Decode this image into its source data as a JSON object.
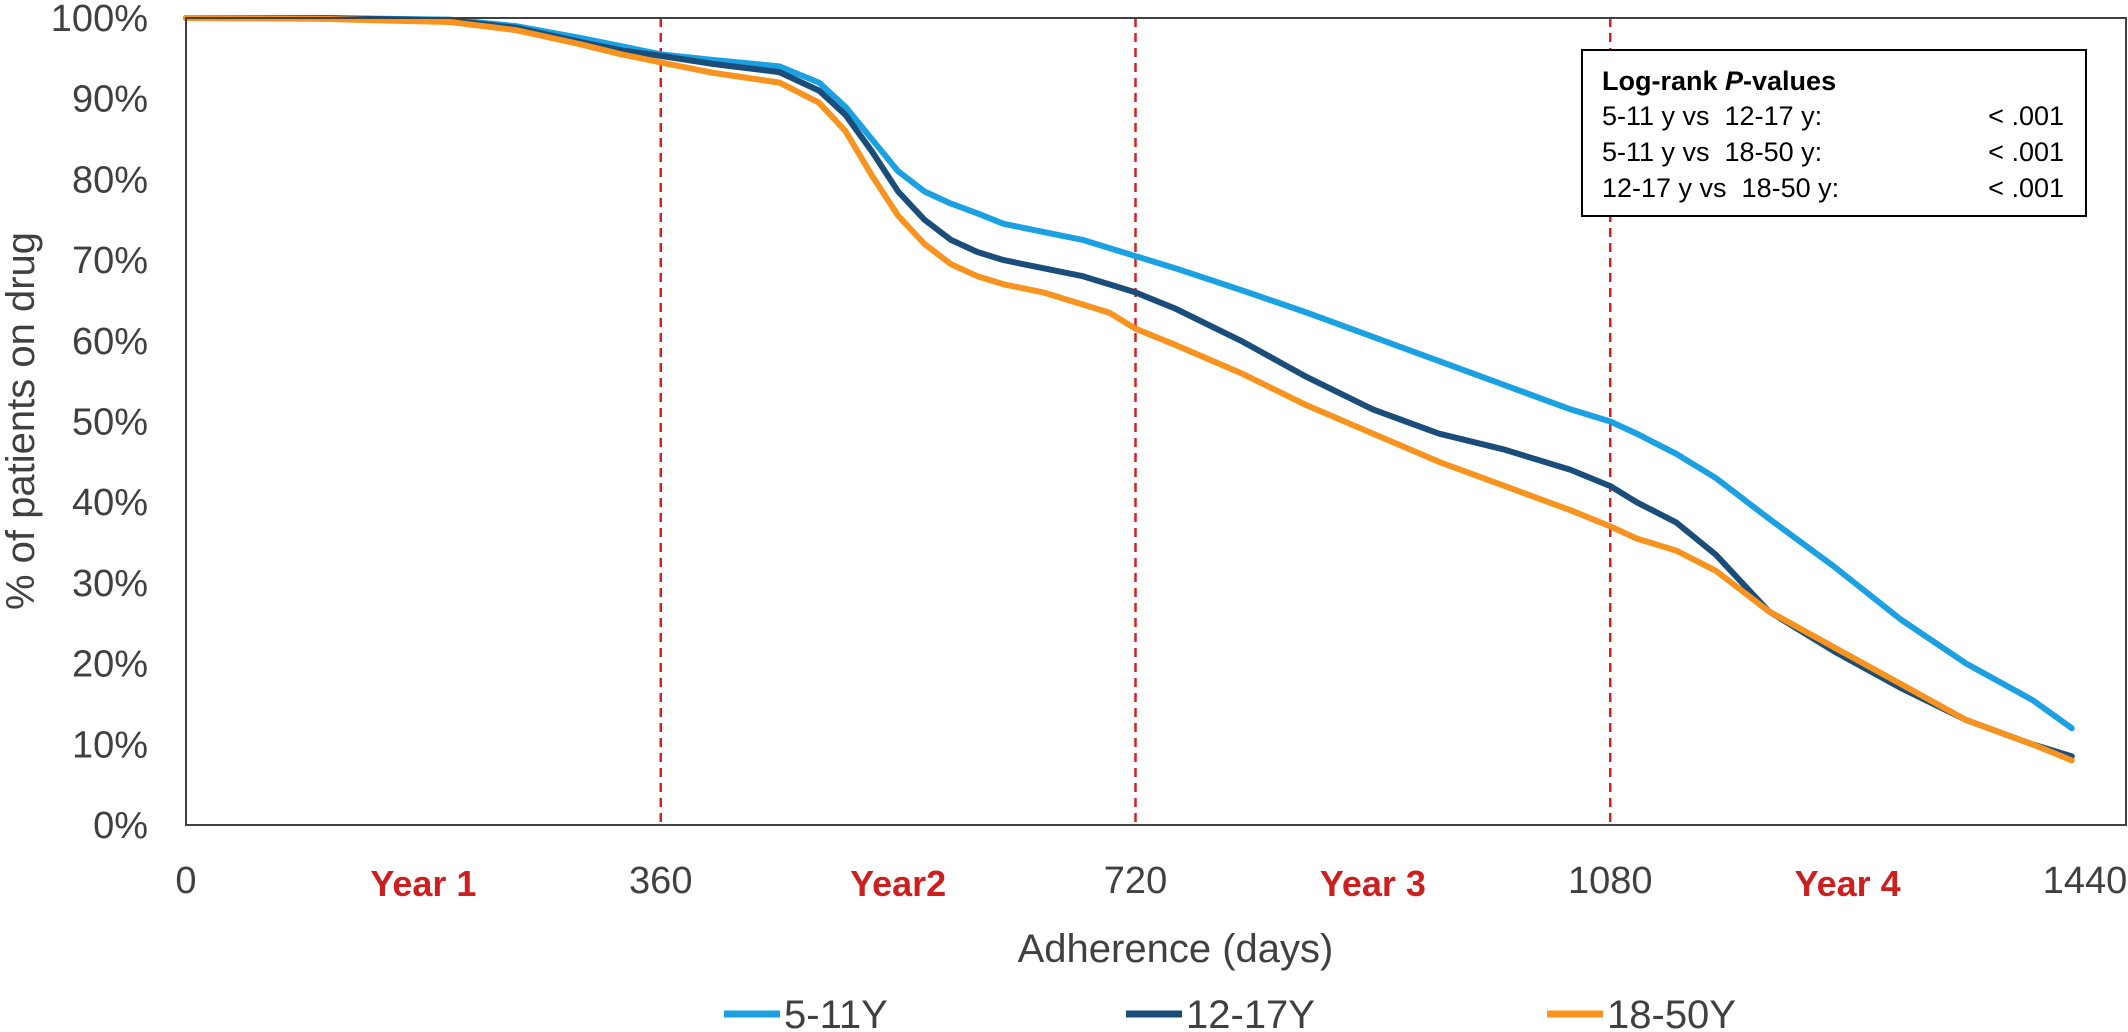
{
  "chart_data": {
    "type": "line",
    "xlabel": "Adherence (days)",
    "ylabel": "% of patients on drug",
    "xlim": [
      0,
      1440
    ],
    "ylim": [
      0,
      100
    ],
    "x_ticks": [
      "0",
      "360",
      "720",
      "1080",
      "1440"
    ],
    "y_ticks": [
      "0%",
      "10%",
      "20%",
      "30%",
      "40%",
      "50%",
      "60%",
      "70%",
      "80%",
      "90%",
      "100%"
    ],
    "year_labels": [
      {
        "x": 180,
        "label": "Year 1"
      },
      {
        "x": 540,
        "label": "Year2"
      },
      {
        "x": 900,
        "label": "Year 3"
      },
      {
        "x": 1260,
        "label": "Year 4"
      }
    ],
    "reference_lines_x": [
      360,
      720,
      1080
    ],
    "reference_line_color": "#d62020",
    "legend_position": "bottom",
    "annotation": {
      "title_prefix": "Log-rank ",
      "title_italic": "P",
      "title_suffix": "-values",
      "rows": [
        {
          "label": "5-11 y vs  12-17 y:",
          "value": "< .001"
        },
        {
          "label": "5-11 y vs  18-50 y:",
          "value": "< .001"
        },
        {
          "label": "12-17 y vs  18-50 y:",
          "value": "< .001"
        }
      ]
    },
    "series": [
      {
        "name": "5-11Y",
        "color": "#1ba1e2",
        "x": [
          0,
          100,
          200,
          250,
          300,
          330,
          360,
          400,
          450,
          480,
          500,
          520,
          540,
          560,
          580,
          600,
          620,
          650,
          680,
          700,
          720,
          750,
          800,
          850,
          900,
          950,
          1000,
          1050,
          1080,
          1100,
          1130,
          1160,
          1200,
          1250,
          1300,
          1350,
          1400,
          1430
        ],
        "values": [
          100,
          100,
          99.8,
          99,
          97.5,
          96.5,
          95.5,
          94.8,
          94,
          92,
          89,
          85,
          81,
          78.5,
          77,
          75.8,
          74.5,
          73.5,
          72.5,
          71.5,
          70.5,
          69,
          66.3,
          63.5,
          60.5,
          57.5,
          54.5,
          51.5,
          50,
          48.5,
          46,
          43,
          38,
          32,
          25.5,
          20,
          15.5,
          12
        ]
      },
      {
        "name": "12-17Y",
        "color": "#1a4d7a",
        "x": [
          0,
          100,
          200,
          250,
          300,
          330,
          360,
          400,
          450,
          480,
          500,
          520,
          540,
          560,
          580,
          600,
          620,
          650,
          680,
          700,
          720,
          750,
          800,
          850,
          900,
          950,
          1000,
          1050,
          1080,
          1100,
          1130,
          1160,
          1200,
          1250,
          1300,
          1350,
          1400,
          1430
        ],
        "values": [
          100,
          100,
          99.7,
          98.8,
          97,
          96,
          95.3,
          94.3,
          93.3,
          91,
          88,
          83.5,
          78.5,
          75,
          72.5,
          71,
          70,
          69,
          68,
          67,
          66,
          64,
          60,
          55.5,
          51.5,
          48.5,
          46.5,
          44,
          42,
          40,
          37.5,
          33.5,
          26.5,
          21.5,
          17,
          13,
          10,
          8.5
        ]
      },
      {
        "name": "18-50Y",
        "color": "#f7931e",
        "x": [
          0,
          100,
          200,
          250,
          300,
          330,
          360,
          400,
          450,
          480,
          500,
          520,
          540,
          560,
          580,
          600,
          620,
          650,
          680,
          700,
          720,
          750,
          800,
          850,
          900,
          950,
          1000,
          1050,
          1080,
          1100,
          1130,
          1160,
          1200,
          1250,
          1300,
          1350,
          1400,
          1430
        ],
        "values": [
          100,
          99.9,
          99.5,
          98.5,
          96.7,
          95.5,
          94.5,
          93.2,
          92,
          89.5,
          86,
          80.5,
          75.5,
          72,
          69.5,
          68,
          67,
          66,
          64.5,
          63.5,
          61.5,
          59.5,
          56,
          52,
          48.5,
          45,
          42,
          39,
          37,
          35.5,
          34,
          31.5,
          26.5,
          22,
          17.5,
          13,
          10,
          8
        ]
      }
    ]
  }
}
